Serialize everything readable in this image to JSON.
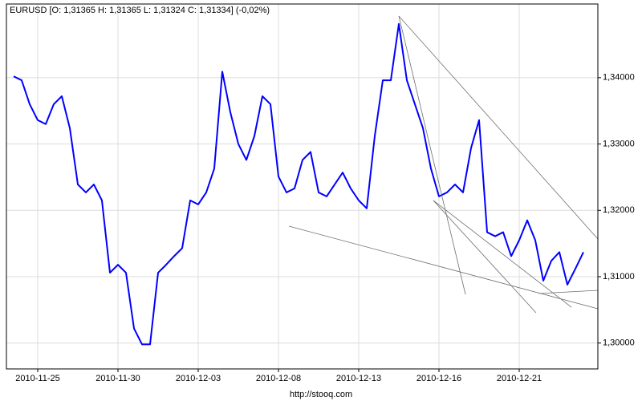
{
  "chart_data": {
    "type": "line",
    "title": "EURUSD [O: 1,31365  H: 1,31365  L: 1,31324  C: 1,31334] (-0,02%)",
    "footer": "http://stooq.com",
    "categories": [
      null,
      null,
      null,
      "2010-11-25",
      null,
      null,
      null,
      null,
      null,
      null,
      null,
      null,
      null,
      "2010-11-30",
      null,
      null,
      null,
      null,
      null,
      null,
      null,
      null,
      null,
      "2010-12-03",
      null,
      null,
      null,
      null,
      null,
      null,
      null,
      null,
      null,
      "2010-12-08",
      null,
      null,
      null,
      null,
      null,
      null,
      null,
      null,
      null,
      "2010-12-13",
      null,
      null,
      null,
      null,
      null,
      null,
      null,
      null,
      null,
      "2010-12-16",
      null,
      null,
      null,
      null,
      null,
      null,
      null,
      null,
      null,
      "2010-12-21",
      null,
      null,
      null,
      null,
      null,
      null,
      null,
      null
    ],
    "series": [
      {
        "name": "EURUSD",
        "color": "#0000ff",
        "values": [
          1.3402,
          1.3396,
          1.336,
          1.3336,
          1.333,
          1.336,
          1.3372,
          1.3324,
          1.3239,
          1.3227,
          1.3239,
          1.3215,
          1.3106,
          1.3118,
          1.3106,
          1.3022,
          1.2998,
          1.2998,
          1.3106,
          1.3118,
          1.3131,
          1.3143,
          1.3215,
          1.3209,
          1.3227,
          1.3263,
          1.3409,
          1.3348,
          1.33,
          1.3276,
          1.3312,
          1.3372,
          1.336,
          1.3251,
          1.3227,
          1.3233,
          1.3276,
          1.3288,
          1.3227,
          1.3221,
          1.3239,
          1.3257,
          1.3233,
          1.3215,
          1.3203,
          1.3312,
          1.3396,
          1.3396,
          1.3481,
          1.3396,
          1.336,
          1.3324,
          1.3263,
          1.3221,
          1.3227,
          1.3239,
          1.3227,
          1.3294,
          1.3336,
          1.3167,
          1.3161,
          1.3167,
          1.3131,
          1.3155,
          1.3185,
          1.3155,
          1.3094,
          1.3124,
          1.3137,
          1.3088,
          1.3112,
          1.3137
        ]
      }
    ],
    "ylim": [
      1.2961,
      1.3511
    ],
    "yticks": [
      {
        "value": 1.3,
        "label": "1,30000"
      },
      {
        "value": 1.31,
        "label": "1,31000"
      },
      {
        "value": 1.32,
        "label": "1,32000"
      },
      {
        "value": 1.33,
        "label": "1,33000"
      },
      {
        "value": 1.34,
        "label": "1,34000"
      }
    ],
    "grid": true
  }
}
